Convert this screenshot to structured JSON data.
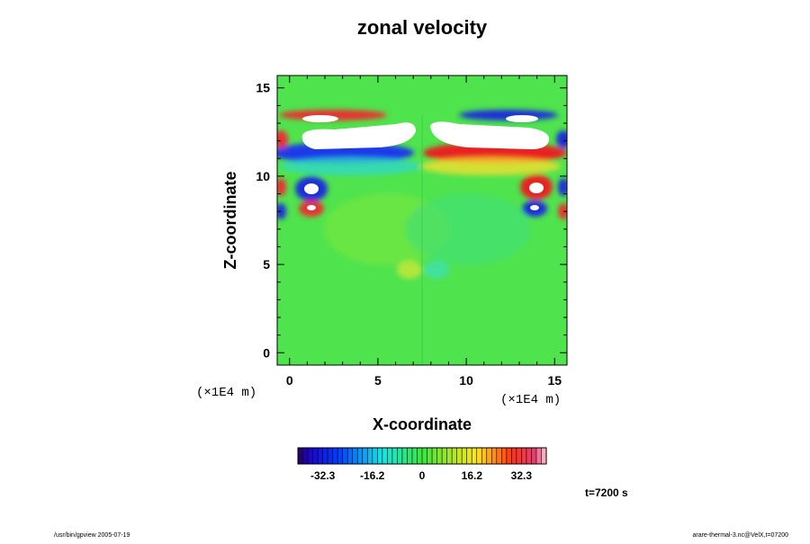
{
  "chart_data": {
    "type": "heatmap",
    "title": "zonal velocity",
    "xlabel": "X-coordinate",
    "ylabel": "Z-coordinate",
    "x_unit_left": "(×1E4 m)",
    "x_unit_right": "(×1E4 m)",
    "xlim": [
      -0.7,
      15.7
    ],
    "ylim": [
      -0.7,
      15.7
    ],
    "x_ticks": [
      0,
      5,
      10,
      15
    ],
    "y_ticks": [
      0,
      5,
      10,
      15
    ],
    "colorbar": {
      "min": -40.4,
      "max": 40.4,
      "ticks": [
        -32.3,
        -16.2,
        0,
        16.2,
        32.3
      ],
      "tick_labels": [
        "-32.3",
        "-16.2",
        "0",
        "16.2",
        "32.3"
      ]
    },
    "time_label": "t=7200 s",
    "footer_left": "/usr/bin/gpview 2005-07-19",
    "footer_right": "arare-thermal-3.nc@VelX,t=07200"
  }
}
